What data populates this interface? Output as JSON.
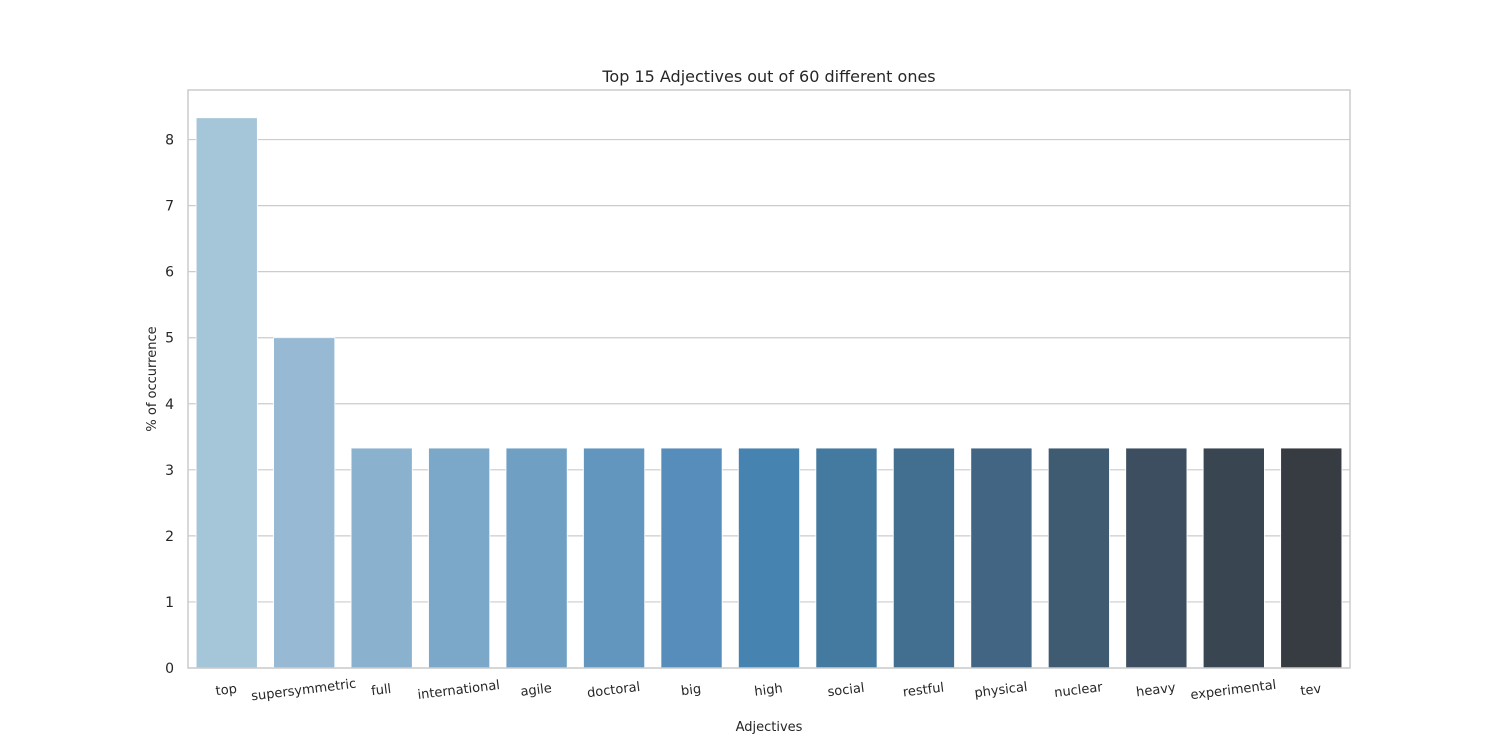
{
  "chart_data": {
    "type": "bar",
    "title": "Top 15 Adjectives out of 60 different ones",
    "xlabel": "Adjectives",
    "ylabel": "% of occurrence",
    "categories": [
      "top",
      "supersymmetric",
      "full",
      "international",
      "agile",
      "doctoral",
      "big",
      "high",
      "social",
      "restful",
      "physical",
      "nuclear",
      "heavy",
      "experimental",
      "tev"
    ],
    "values": [
      8.33,
      5.0,
      3.33,
      3.33,
      3.33,
      3.33,
      3.33,
      3.33,
      3.33,
      3.33,
      3.33,
      3.33,
      3.33,
      3.33,
      3.33
    ],
    "colors": [
      "#a5c5d9",
      "#97b9d4",
      "#8ab1cd",
      "#7ba8c8",
      "#6fa0c4",
      "#6296bf",
      "#568dbb",
      "#4783b1",
      "#447a9f",
      "#426e8f",
      "#416583",
      "#3f5b71",
      "#3c4e60",
      "#394550",
      "#363c42"
    ],
    "yticks": [
      "0",
      "1",
      "2",
      "3",
      "4",
      "5",
      "6",
      "7",
      "8"
    ],
    "ylim": [
      0,
      8.75
    ],
    "grid": "horizontal",
    "legend": "none"
  }
}
